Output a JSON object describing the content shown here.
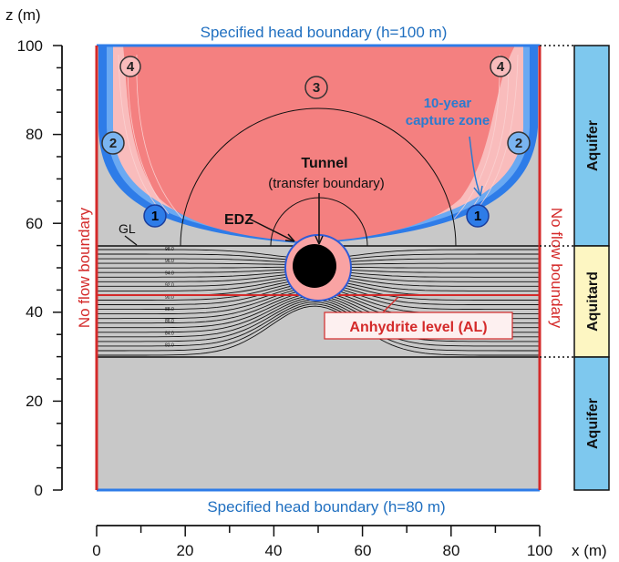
{
  "axes": {
    "y_title": "z (m)",
    "x_title": "x (m)",
    "y_ticks": [
      "0",
      "20",
      "40",
      "60",
      "80",
      "100"
    ],
    "x_ticks": [
      "0",
      "20",
      "40",
      "60",
      "80",
      "100"
    ],
    "x_range": [
      0,
      100
    ],
    "z_range": [
      0,
      100
    ]
  },
  "boundaries": {
    "top": "Specified head boundary (h=100 m)",
    "bottom": "Specified head boundary (h=80 m)",
    "left": "No flow boundary",
    "right": "No flow boundary"
  },
  "annotations": {
    "tunnel_title": "Tunnel",
    "tunnel_sub": "(transfer boundary)",
    "edz": "EDZ",
    "gl": "GL",
    "capture_zone_line1": "10-year",
    "capture_zone_line2": "capture zone",
    "anhydrite": "Anhydrite level (AL)"
  },
  "zones": [
    "1",
    "2",
    "3",
    "4"
  ],
  "strata": [
    {
      "label": "Aquifer",
      "z_bottom": 55,
      "z_top": 100,
      "color": "#7ec8ee"
    },
    {
      "label": "Aquitard",
      "z_bottom": 30,
      "z_top": 55,
      "color": "#fdf6c2"
    },
    {
      "label": "Aquifer",
      "z_bottom": 0,
      "z_top": 30,
      "color": "#7ec8ee"
    }
  ],
  "layers": {
    "ground_level_z": 55,
    "aquitard_bottom_z": 30,
    "anhydrite_z": 44,
    "tunnel_center": [
      50,
      50
    ],
    "tunnel_radius_m": 4.5,
    "edz_radius_m": 6.5
  },
  "contour_labels": [
    "98.0",
    "96.0",
    "94.0",
    "92.0",
    "90.0",
    "88.0",
    "86.0",
    "84.0",
    "82.0"
  ],
  "colors": {
    "capture_red": "#f48080",
    "capture_light": "#f9bcbc",
    "head_blue": "#2e7ce8",
    "noflow_red": "#d42a2a",
    "background_gray": "#c8c8c8"
  }
}
